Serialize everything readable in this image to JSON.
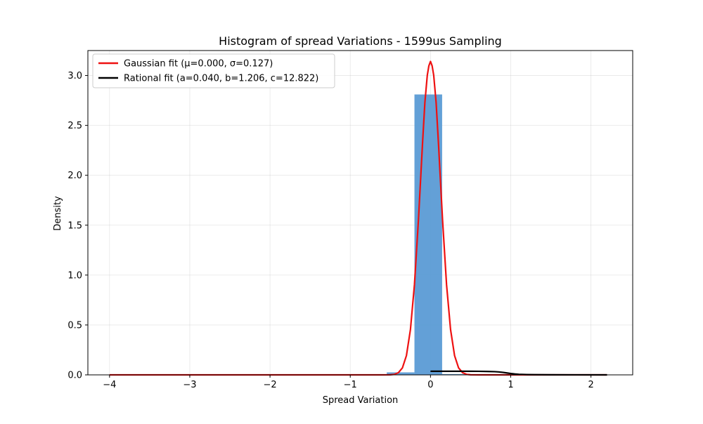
{
  "chart_data": {
    "type": "histogram",
    "title": "Histogram of spread Variations - 1599us Sampling",
    "xlabel": "Spread Variation",
    "ylabel": "Density",
    "xlim": [
      -4.27,
      2.52
    ],
    "ylim": [
      0.0,
      3.25
    ],
    "x_ticks": [
      -4,
      -3,
      -2,
      -1,
      0,
      1,
      2
    ],
    "x_tick_labels": [
      "−4",
      "−3",
      "−2",
      "−1",
      "0",
      "1",
      "2"
    ],
    "y_ticks": [
      0.0,
      0.5,
      1.0,
      1.5,
      2.0,
      2.5,
      3.0
    ],
    "y_tick_labels": [
      "0.0",
      "0.5",
      "1.0",
      "1.5",
      "2.0",
      "2.5",
      "3.0"
    ],
    "grid": true,
    "legend_position": "top-left",
    "histogram": {
      "color": "#5b9bd5",
      "bins": [
        {
          "x0": -1.235,
          "x1": -0.89,
          "density": 0.004
        },
        {
          "x0": -0.89,
          "x1": -0.545,
          "density": 0.0
        },
        {
          "x0": -0.545,
          "x1": -0.2,
          "density": 0.025
        },
        {
          "x0": -0.2,
          "x1": 0.145,
          "density": 2.81
        },
        {
          "x0": 0.145,
          "x1": 0.49,
          "density": 0.008
        },
        {
          "x0": 0.49,
          "x1": 0.835,
          "density": 0.003
        },
        {
          "x0": 1.87,
          "x1": 2.215,
          "density": 0.003
        }
      ]
    },
    "series": [
      {
        "name": "Gaussian fit (μ=0.000, σ=0.127)",
        "color": "#ee1111",
        "x": [
          -4.0,
          -1.0,
          -0.6,
          -0.5,
          -0.45,
          -0.4,
          -0.35,
          -0.3,
          -0.25,
          -0.2,
          -0.15,
          -0.1,
          -0.07,
          -0.04,
          -0.02,
          0.0,
          0.02,
          0.04,
          0.07,
          0.1,
          0.15,
          0.2,
          0.25,
          0.3,
          0.35,
          0.4,
          0.45,
          0.5,
          0.6,
          1.0,
          2.2
        ],
        "y": [
          0.0,
          0.0,
          0.0,
          0.001,
          0.005,
          0.022,
          0.07,
          0.193,
          0.454,
          0.904,
          1.557,
          2.31,
          2.729,
          3.002,
          3.098,
          3.141,
          3.098,
          3.002,
          2.729,
          2.31,
          1.557,
          0.904,
          0.454,
          0.193,
          0.07,
          0.022,
          0.005,
          0.001,
          0.0,
          0.0,
          0.0
        ]
      },
      {
        "name": "Rational fit (a=0.040, b=1.206, c=12.822)",
        "color": "#000000",
        "x": [
          0.0,
          0.1,
          0.2,
          0.3,
          0.4,
          0.5,
          0.6,
          0.7,
          0.8,
          0.85,
          0.9,
          0.95,
          1.0,
          1.05,
          1.1,
          1.2,
          1.3,
          1.5,
          1.8,
          2.2
        ],
        "y": [
          0.036,
          0.036,
          0.036,
          0.036,
          0.036,
          0.0359,
          0.0355,
          0.0345,
          0.032,
          0.0295,
          0.025,
          0.0195,
          0.0138,
          0.009,
          0.0058,
          0.0028,
          0.0016,
          0.0008,
          0.0004,
          0.0002
        ]
      }
    ]
  }
}
